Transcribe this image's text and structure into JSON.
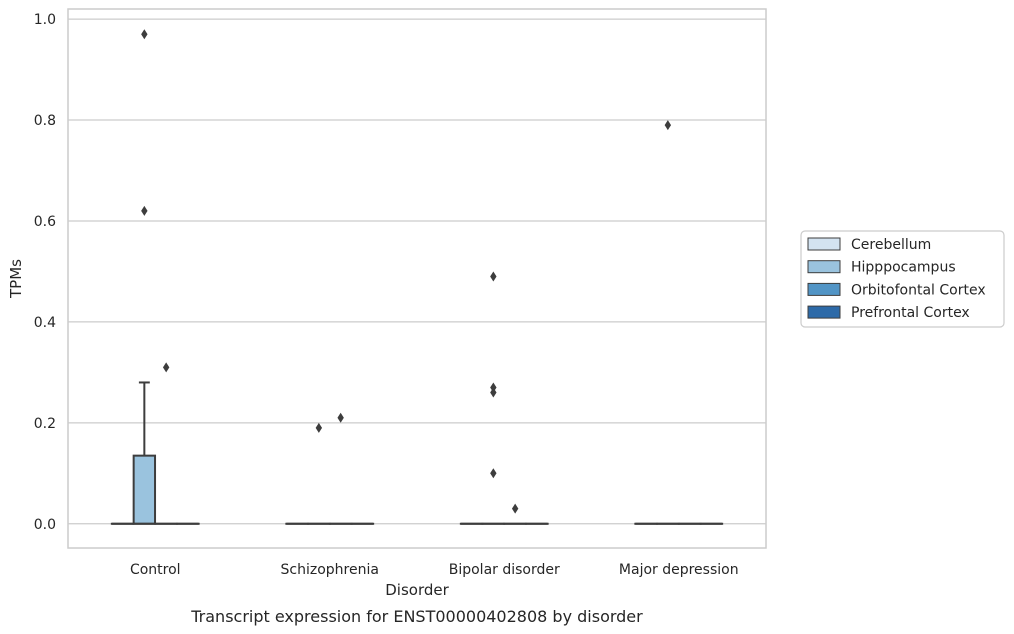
{
  "chart_data": {
    "type": "box",
    "title": "Transcript expression for ENST00000402808 by disorder",
    "xlabel": "Disorder",
    "ylabel": "TPMs",
    "categories": [
      "Control",
      "Schizophrenia",
      "Bipolar disorder",
      "Major depression"
    ],
    "ylim": [
      -0.048,
      1.02
    ],
    "yticks": [
      0.0,
      0.2,
      0.4,
      0.6,
      0.8,
      1.0
    ],
    "ytick_labels": [
      "0.0",
      "0.2",
      "0.4",
      "0.6",
      "0.8",
      "1.0"
    ],
    "grid": "horizontal",
    "legend_placement": "right",
    "series": [
      {
        "name": "Cerebellum",
        "color": "#d3e3f1",
        "boxes": [
          {
            "category": "Control",
            "q1": 0,
            "median": 0,
            "q3": 0,
            "whisker_low": 0,
            "whisker_high": 0,
            "outliers": []
          },
          {
            "category": "Schizophrenia",
            "q1": 0,
            "median": 0,
            "q3": 0,
            "whisker_low": 0,
            "whisker_high": 0,
            "outliers": []
          },
          {
            "category": "Bipolar disorder",
            "q1": 0,
            "median": 0,
            "q3": 0,
            "whisker_low": 0,
            "whisker_high": 0,
            "outliers": []
          },
          {
            "category": "Major depression",
            "q1": 0,
            "median": 0,
            "q3": 0,
            "whisker_low": 0,
            "whisker_high": 0,
            "outliers": []
          }
        ]
      },
      {
        "name": "Hipppocampus",
        "color": "#9ac3de",
        "boxes": [
          {
            "category": "Control",
            "q1": 0,
            "median": 0,
            "q3": 0.135,
            "whisker_low": 0,
            "whisker_high": 0.28,
            "outliers": [
              0.97,
              0.62
            ]
          },
          {
            "category": "Schizophrenia",
            "q1": 0,
            "median": 0,
            "q3": 0,
            "whisker_low": 0,
            "whisker_high": 0,
            "outliers": [
              0.19
            ]
          },
          {
            "category": "Bipolar disorder",
            "q1": 0,
            "median": 0,
            "q3": 0,
            "whisker_low": 0,
            "whisker_high": 0,
            "outliers": [
              0.49,
              0.27,
              0.26,
              0.1
            ]
          },
          {
            "category": "Major depression",
            "q1": 0,
            "median": 0,
            "q3": 0,
            "whisker_low": 0,
            "whisker_high": 0,
            "outliers": [
              0.79
            ]
          }
        ]
      },
      {
        "name": "Orbitofontal Cortex",
        "color": "#5295c6",
        "boxes": [
          {
            "category": "Control",
            "q1": 0,
            "median": 0,
            "q3": 0,
            "whisker_low": 0,
            "whisker_high": 0,
            "outliers": [
              0.31
            ]
          },
          {
            "category": "Schizophrenia",
            "q1": 0,
            "median": 0,
            "q3": 0,
            "whisker_low": 0,
            "whisker_high": 0,
            "outliers": [
              0.21
            ]
          },
          {
            "category": "Bipolar disorder",
            "q1": 0,
            "median": 0,
            "q3": 0,
            "whisker_low": 0,
            "whisker_high": 0,
            "outliers": [
              0.03
            ]
          },
          {
            "category": "Major depression",
            "q1": 0,
            "median": 0,
            "q3": 0,
            "whisker_low": 0,
            "whisker_high": 0,
            "outliers": []
          }
        ]
      },
      {
        "name": "Prefrontal Cortex",
        "color": "#2d6aa8",
        "boxes": [
          {
            "category": "Control",
            "q1": 0,
            "median": 0,
            "q3": 0,
            "whisker_low": 0,
            "whisker_high": 0,
            "outliers": []
          },
          {
            "category": "Schizophrenia",
            "q1": 0,
            "median": 0,
            "q3": 0,
            "whisker_low": 0,
            "whisker_high": 0,
            "outliers": []
          },
          {
            "category": "Bipolar disorder",
            "q1": 0,
            "median": 0,
            "q3": 0,
            "whisker_low": 0,
            "whisker_high": 0,
            "outliers": []
          },
          {
            "category": "Major depression",
            "q1": 0,
            "median": 0,
            "q3": 0,
            "whisker_low": 0,
            "whisker_high": 0,
            "outliers": []
          }
        ]
      }
    ]
  }
}
